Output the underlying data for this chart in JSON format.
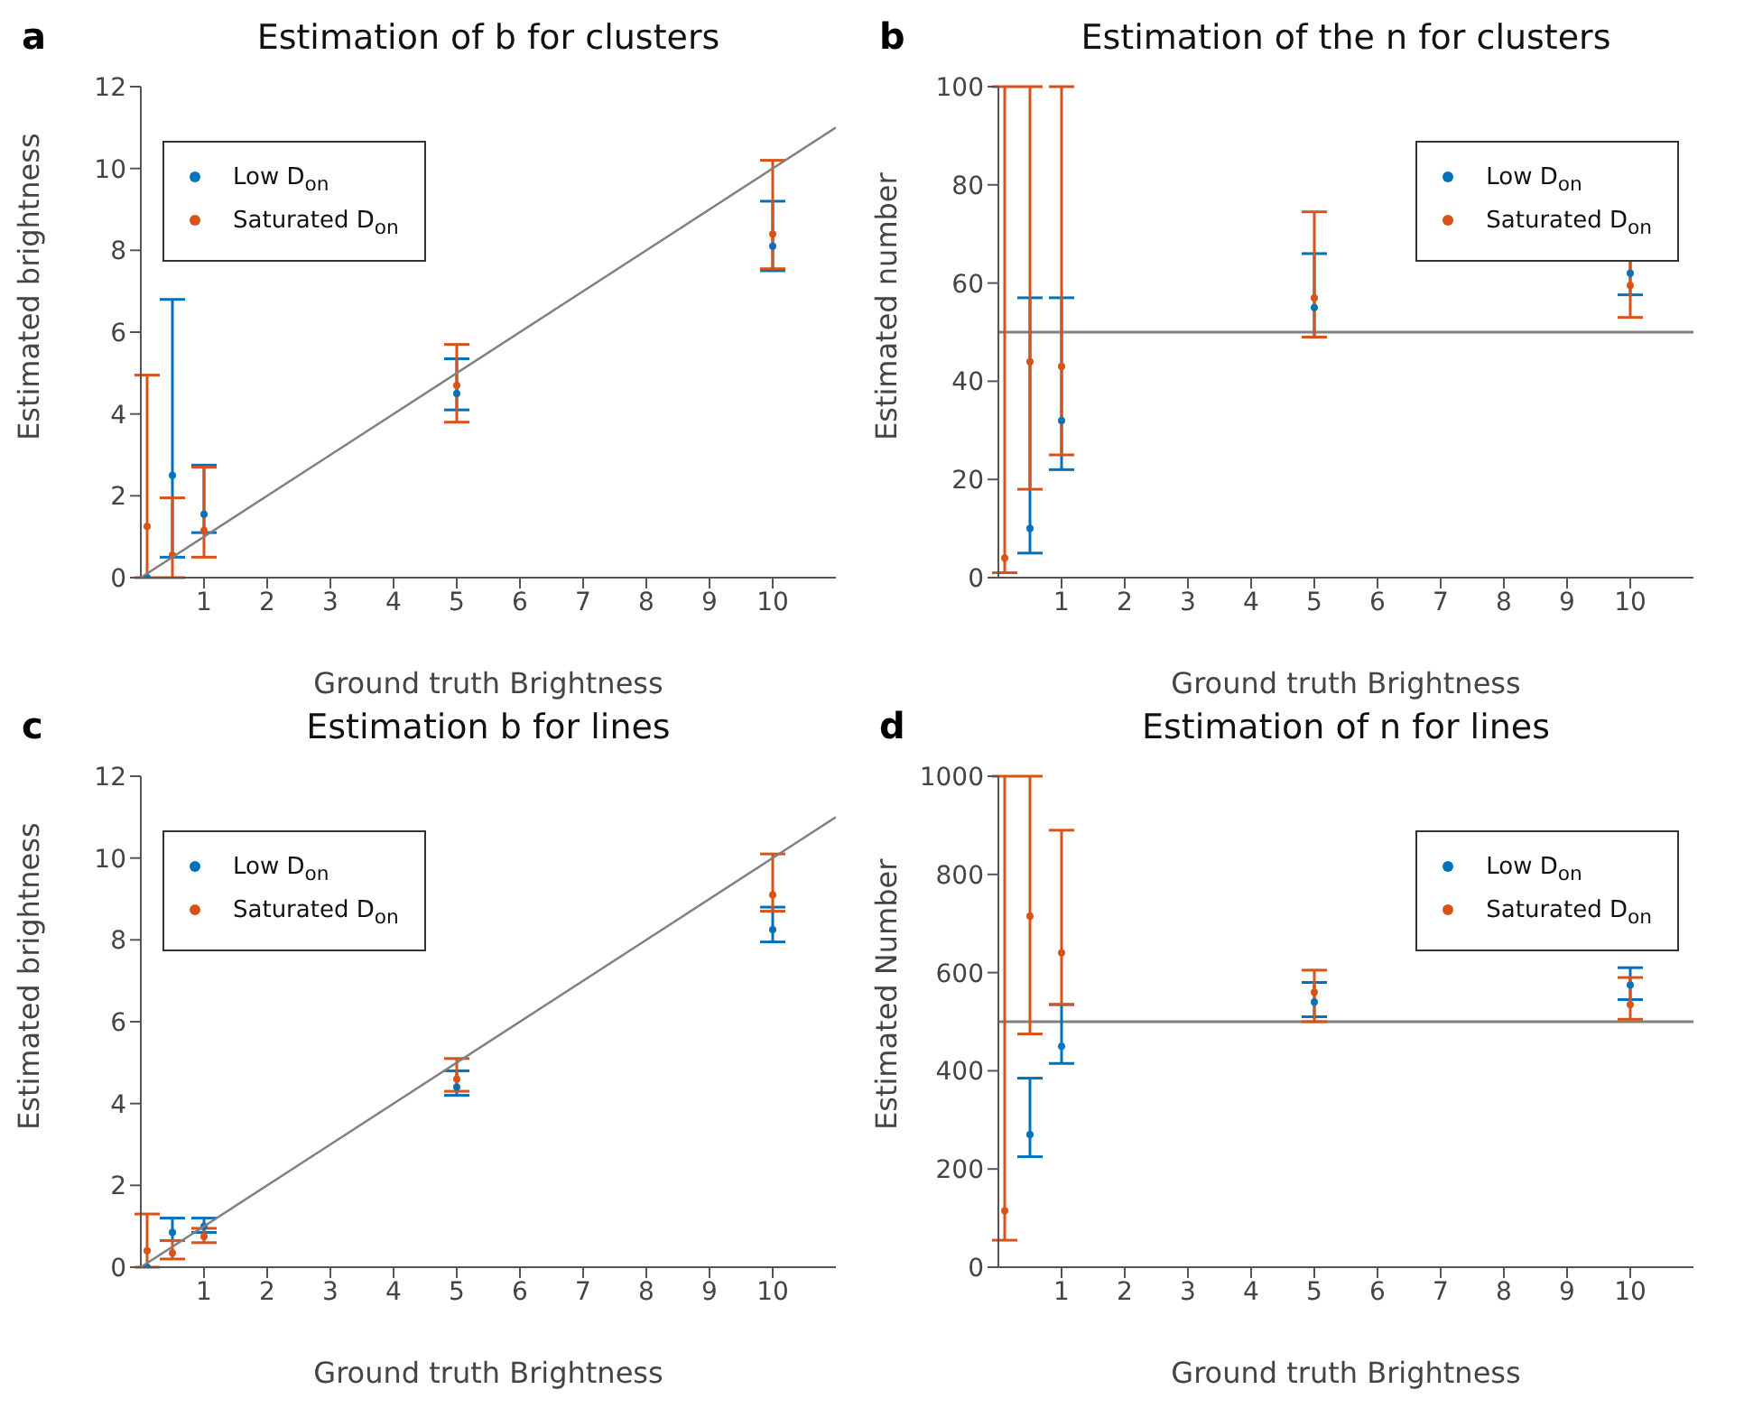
{
  "chart_data": [
    {
      "type": "scatter",
      "title": "Estimation of b for clusters",
      "xlabel": "Ground truth Brightness",
      "ylabel": "Estimated brightness",
      "annotations": [
        "a"
      ],
      "xlim": [
        0,
        11
      ],
      "xticks": [
        1,
        2,
        3,
        4,
        5,
        6,
        7,
        8,
        9,
        10
      ],
      "ylim": [
        0,
        12
      ],
      "yticks": [
        0,
        2,
        4,
        6,
        8,
        10,
        12
      ],
      "grid": false,
      "legend": "top left",
      "marker": "circle",
      "series": [
        {
          "name": "Low D$_{on}$",
          "color": "#0072bd",
          "x": [
            0.1,
            0.5,
            1,
            5,
            10
          ],
          "values": [
            0,
            2.5,
            1.55,
            4.5,
            8.1
          ],
          "errors": [
            null,
            [
              0.5,
              6.8
            ],
            [
              1.1,
              2.75
            ],
            [
              4.1,
              5.35
            ],
            [
              7.5,
              9.2
            ]
          ]
        },
        {
          "name": "Saturated D$_{on}$",
          "color": "#d95319",
          "x": [
            0.1,
            0.5,
            1,
            5,
            10
          ],
          "values": [
            1.25,
            0.55,
            1.15,
            4.7,
            8.4
          ],
          "errors": [
            [
              0,
              4.95
            ],
            [
              0,
              1.95
            ],
            [
              0.5,
              2.7
            ],
            [
              3.8,
              5.7
            ],
            [
              7.55,
              10.2
            ]
          ]
        },
        {
          "type": "line",
          "marker": "none",
          "color": "#808080",
          "x": [
            0,
            11
          ],
          "values": [
            0,
            11
          ]
        }
      ]
    },
    {
      "type": "scatter",
      "title": "Estimation of the n for clusters",
      "xlabel": "Ground truth Brightness",
      "ylabel": "Estimated number",
      "annotations": [
        "b"
      ],
      "xlim": [
        0,
        11
      ],
      "xticks": [
        1,
        2,
        3,
        4,
        5,
        6,
        7,
        8,
        9,
        10
      ],
      "ylim": [
        0,
        100
      ],
      "yticks": [
        0,
        20,
        40,
        60,
        80,
        100
      ],
      "grid": false,
      "legend": "top right",
      "marker": "circle",
      "ref_lines": [
        {
          "axis": "y",
          "value": 50,
          "color": "#808080"
        }
      ],
      "series": [
        {
          "name": "Low D$_{on}$",
          "color": "#0072bd",
          "x": [
            0.5,
            1,
            5,
            10
          ],
          "values": [
            10,
            32,
            55,
            62
          ],
          "errors": [
            [
              5,
              57
            ],
            [
              22,
              57
            ],
            [
              49,
              66
            ],
            [
              57.6,
              71
            ]
          ]
        },
        {
          "name": "Saturated D$_{on}$",
          "color": "#d95319",
          "x": [
            0.1,
            0.5,
            1,
            5,
            10
          ],
          "values": [
            4,
            44,
            43,
            57,
            59.5
          ],
          "errors": [
            [
              1,
              100
            ],
            [
              18,
              100
            ],
            [
              25,
              100
            ],
            [
              49,
              74.5
            ],
            [
              53,
              72.5
            ]
          ]
        }
      ]
    },
    {
      "type": "scatter",
      "title": "Estimation b for lines",
      "xlabel": "Ground truth Brightness",
      "ylabel": "Estimated brightness",
      "annotations": [
        "c"
      ],
      "xlim": [
        0,
        11
      ],
      "xticks": [
        1,
        2,
        3,
        4,
        5,
        6,
        7,
        8,
        9,
        10
      ],
      "ylim": [
        0,
        12
      ],
      "yticks": [
        0,
        2,
        4,
        6,
        8,
        10,
        12
      ],
      "grid": false,
      "legend": "top left",
      "marker": "circle",
      "series": [
        {
          "name": "Low D$_{on}$",
          "color": "#0072bd",
          "x": [
            0.1,
            0.5,
            1,
            5,
            10
          ],
          "values": [
            0,
            0.85,
            1.0,
            4.4,
            8.25
          ],
          "errors": [
            null,
            [
              0.65,
              1.2
            ],
            [
              0.85,
              1.2
            ],
            [
              4.2,
              4.8
            ],
            [
              7.95,
              8.8
            ]
          ]
        },
        {
          "name": "Saturated D$_{on}$",
          "color": "#d95319",
          "x": [
            0.1,
            0.5,
            1,
            5,
            10
          ],
          "values": [
            0.4,
            0.35,
            0.75,
            4.6,
            9.1
          ],
          "errors": [
            [
              0,
              1.3
            ],
            [
              0.2,
              0.65
            ],
            [
              0.6,
              0.95
            ],
            [
              4.3,
              5.1
            ],
            [
              8.7,
              10.1
            ]
          ]
        },
        {
          "type": "line",
          "marker": "none",
          "color": "#808080",
          "x": [
            0,
            11
          ],
          "values": [
            0,
            11
          ]
        }
      ]
    },
    {
      "type": "scatter",
      "title": "Estimation of n for lines",
      "xlabel": "Ground truth Brightness",
      "ylabel": "Estimated Number",
      "annotations": [
        "d"
      ],
      "xlim": [
        0,
        11
      ],
      "xticks": [
        1,
        2,
        3,
        4,
        5,
        6,
        7,
        8,
        9,
        10
      ],
      "ylim": [
        0,
        1000
      ],
      "yticks": [
        0,
        200,
        400,
        600,
        800,
        1000
      ],
      "grid": false,
      "legend": "top right",
      "marker": "circle",
      "ref_lines": [
        {
          "axis": "y",
          "value": 500,
          "color": "#808080"
        }
      ],
      "series": [
        {
          "name": "Low D$_{on}$",
          "color": "#0072bd",
          "x": [
            0.5,
            1,
            5,
            10
          ],
          "values": [
            270,
            450,
            540,
            575
          ],
          "errors": [
            [
              225,
              385
            ],
            [
              415,
              535
            ],
            [
              510,
              580
            ],
            [
              545,
              610
            ]
          ]
        },
        {
          "name": "Saturated D$_{on}$",
          "color": "#d95319",
          "x": [
            0.1,
            0.5,
            1,
            5,
            10
          ],
          "values": [
            115,
            715,
            640,
            560,
            535
          ],
          "errors": [
            [
              55,
              1000
            ],
            [
              475,
              1000
            ],
            [
              535,
              890
            ],
            [
              500,
              605
            ],
            [
              505,
              590
            ]
          ]
        }
      ]
    }
  ]
}
